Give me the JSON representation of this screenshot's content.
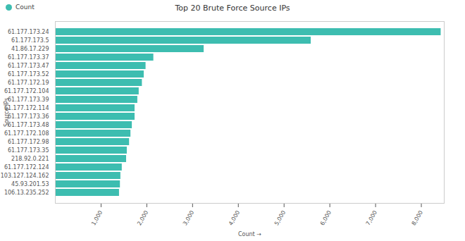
{
  "chart_data": {
    "type": "bar",
    "orientation": "horizontal",
    "title": "Top 20 Brute Force Source IPs",
    "x_label": "Count",
    "y_label": "Source IPs",
    "categories": [
      "61.177.173.24",
      "61.177.173.5",
      "41.86.17.229",
      "61.177.173.37",
      "61.177.173.47",
      "61.177.173.52",
      "61.177.172.19",
      "61.177.172.104",
      "61.177.173.39",
      "61.177.172.114",
      "61.177.173.36",
      "61.177.173.48",
      "61.177.172.108",
      "61.177.172.98",
      "61.177.173.35",
      "218.92.0.221",
      "61.177.172.124",
      "103.127.124.162",
      "45.93.201.53",
      "106.13.235.252"
    ],
    "series": [
      {
        "name": "Count",
        "color": "#3dbdb0",
        "values": [
          8430,
          5590,
          3250,
          2150,
          1980,
          1940,
          1900,
          1830,
          1800,
          1740,
          1740,
          1680,
          1650,
          1620,
          1570,
          1555,
          1460,
          1430,
          1420,
          1400
        ]
      }
    ],
    "xlim": [
      0,
      8500
    ],
    "xticks": [
      {
        "value": 1000,
        "label": "1,000"
      },
      {
        "value": 2000,
        "label": "2,000"
      },
      {
        "value": 3000,
        "label": "3,000"
      },
      {
        "value": 4000,
        "label": "4,000"
      },
      {
        "value": 5000,
        "label": "5,000"
      },
      {
        "value": 6000,
        "label": "6,000"
      },
      {
        "value": 7000,
        "label": "7,000"
      },
      {
        "value": 8000,
        "label": "8,000"
      }
    ],
    "grid": false,
    "legend": "top-left"
  }
}
